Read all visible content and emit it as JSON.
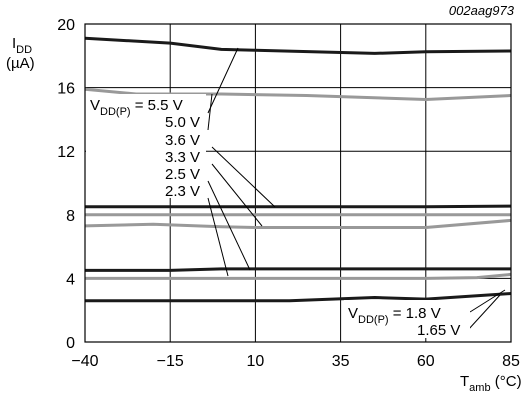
{
  "chart_data": {
    "type": "line",
    "figure_id": "002aag973",
    "ylabel_main": "I",
    "ylabel_sub": "DD",
    "ylabel_unit": "(µA)",
    "xlabel_main": "T",
    "xlabel_sub": "amb",
    "xlabel_unit": " (°C)",
    "xlim": [
      -40,
      85
    ],
    "ylim": [
      0,
      20
    ],
    "x_ticks": [
      -40,
      -15,
      10,
      35,
      60,
      85
    ],
    "x_tick_labels": [
      "−40",
      "−15",
      "10",
      "35",
      "60",
      "85"
    ],
    "y_ticks": [
      0,
      4,
      8,
      12,
      16,
      20
    ],
    "y_tick_labels": [
      "0",
      "4",
      "8",
      "12",
      "16",
      "20"
    ],
    "grid": true,
    "series": [
      {
        "name": "5.5 V",
        "color": "#1a1a1a",
        "x": [
          -40,
          -15,
          0,
          10,
          45,
          60,
          85
        ],
        "y": [
          19.1,
          18.8,
          18.4,
          18.35,
          18.15,
          18.25,
          18.3
        ]
      },
      {
        "name": "5.0 V",
        "color": "#999999",
        "x": [
          -40,
          -25,
          0,
          25,
          60,
          85
        ],
        "y": [
          15.9,
          15.6,
          15.6,
          15.5,
          15.25,
          15.5
        ]
      },
      {
        "name": "3.6 V",
        "color": "#1a1a1a",
        "x": [
          -40,
          0,
          35,
          60,
          85
        ],
        "y": [
          8.5,
          8.5,
          8.5,
          8.5,
          8.55
        ]
      },
      {
        "name": "3.3 V",
        "color": "#999999",
        "x": [
          -40,
          0,
          35,
          60,
          85
        ],
        "y": [
          8.0,
          8.0,
          8.0,
          8.0,
          8.0
        ]
      },
      {
        "name": "2.5 V",
        "color": "#999999",
        "x": [
          -40,
          -20,
          0,
          10,
          35,
          60,
          85
        ],
        "y": [
          7.3,
          7.4,
          7.25,
          7.2,
          7.2,
          7.2,
          7.65
        ]
      },
      {
        "name": "2.3 V",
        "color": "#1a1a1a",
        "x": [
          -40,
          -15,
          0,
          35,
          60,
          85
        ],
        "y": [
          4.5,
          4.5,
          4.6,
          4.6,
          4.6,
          4.6
        ]
      },
      {
        "name": "1.8 V",
        "color": "#999999",
        "x": [
          -40,
          0,
          35,
          60,
          75,
          85
        ],
        "y": [
          4.0,
          4.0,
          4.0,
          4.0,
          4.05,
          4.25
        ]
      },
      {
        "name": "1.65 V",
        "color": "#1a1a1a",
        "x": [
          -40,
          0,
          20,
          45,
          60,
          85
        ],
        "y": [
          2.6,
          2.6,
          2.6,
          2.8,
          2.7,
          3.05
        ]
      }
    ],
    "annotations": {
      "top_group": [
        {
          "prefix": "V",
          "sub": "DD(P)",
          "text": " = 5.5 V"
        },
        {
          "text": "5.0 V"
        },
        {
          "text": "3.6 V"
        },
        {
          "text": "3.3 V"
        },
        {
          "text": "2.5 V"
        },
        {
          "text": "2.3 V"
        }
      ],
      "bottom_group": [
        {
          "prefix": "V",
          "sub": "DD(P)",
          "text": " = 1.8 V"
        },
        {
          "text": "1.65 V"
        }
      ]
    }
  }
}
